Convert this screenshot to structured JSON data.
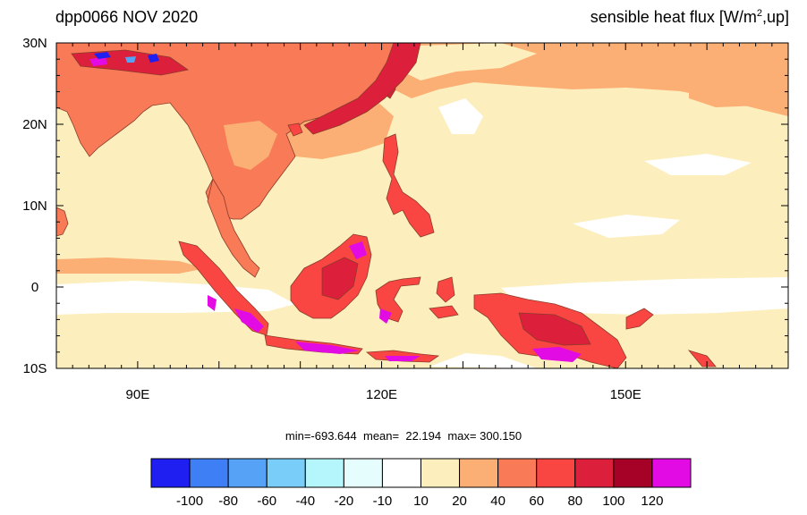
{
  "title_left": "dpp0066 NOV 2020",
  "title_right": {
    "main": "sensible heat flux [W/m",
    "sup": "2",
    "tail": ",up]"
  },
  "axes": {
    "lat_labels": [
      "30N",
      "20N",
      "10N",
      "0",
      "10S"
    ],
    "lat_values": [
      30,
      20,
      10,
      0,
      -10
    ],
    "lon_labels": [
      "90E",
      "120E",
      "150E"
    ],
    "lon_values": [
      90,
      120,
      150
    ],
    "lon_range": [
      80,
      170
    ],
    "lat_range": [
      -10,
      30
    ]
  },
  "stats": {
    "min_label": "min=",
    "min": "-693.644",
    "mean_label": "mean=",
    "mean": "22.194",
    "max_label": "max=",
    "max": "300.150"
  },
  "colorbar": {
    "colors": [
      "#1f1ff2",
      "#3f7ff5",
      "#56a2f6",
      "#78cef8",
      "#b5f5fc",
      "#e6fdfd",
      "#ffffff",
      "#fcefbd",
      "#fbaf75",
      "#f87a57",
      "#f94643",
      "#dc1f3b",
      "#a60126",
      "#e30be3"
    ],
    "labels": [
      "-100",
      "-80",
      "-60",
      "-40",
      "-20",
      "-10",
      "10",
      "20",
      "40",
      "60",
      "80",
      "100",
      "120"
    ]
  },
  "colors": {
    "ocean_base": "#fcefbd",
    "ocean_zero": "#ffffff",
    "land_base": "#f87a57",
    "land_warm": "#fbaf75",
    "land_hot": "#f94643",
    "land_peak": "#dc1f3b",
    "land_extreme": "#e30be3",
    "coast": "#8a3b2a"
  }
}
